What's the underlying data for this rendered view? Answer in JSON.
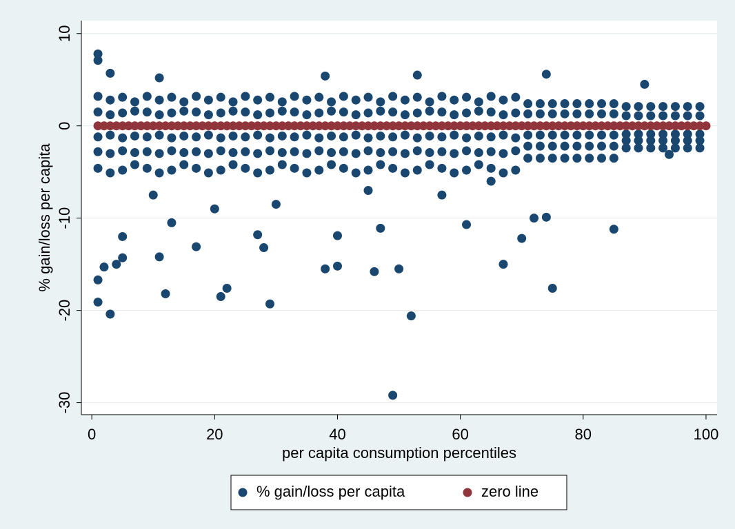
{
  "chart_data": {
    "type": "scatter",
    "x_label": "per capita consumption percentiles",
    "y_label": "% gain/loss per capita",
    "xlim": [
      -1.7,
      101.8
    ],
    "ylim": [
      -31.3,
      11.4
    ],
    "xticks": [
      0,
      20,
      40,
      60,
      80,
      100
    ],
    "yticks": [
      -30,
      -20,
      -10,
      0,
      10
    ],
    "grid": true,
    "legend_position": "bottom",
    "series": [
      {
        "name": "% gain/loss per capita",
        "color": "#1a476f",
        "x": [
          1,
          1,
          1,
          1,
          1,
          3,
          3,
          3,
          3,
          3,
          5,
          5,
          5,
          5,
          5,
          7,
          7,
          7,
          7,
          7,
          9,
          9,
          9,
          9,
          9,
          11,
          11,
          11,
          11,
          11,
          13,
          13,
          13,
          13,
          13,
          15,
          15,
          15,
          15,
          15,
          17,
          17,
          17,
          17,
          17,
          19,
          19,
          19,
          19,
          19,
          21,
          21,
          21,
          21,
          21,
          23,
          23,
          23,
          23,
          23,
          25,
          25,
          25,
          25,
          25,
          27,
          27,
          27,
          27,
          27,
          29,
          29,
          29,
          29,
          29,
          31,
          31,
          31,
          31,
          31,
          33,
          33,
          33,
          33,
          33,
          35,
          35,
          35,
          35,
          35,
          37,
          37,
          37,
          37,
          37,
          39,
          39,
          39,
          39,
          39,
          41,
          41,
          41,
          41,
          41,
          43,
          43,
          43,
          43,
          43,
          45,
          45,
          45,
          45,
          45,
          47,
          47,
          47,
          47,
          47,
          49,
          49,
          49,
          49,
          49,
          51,
          51,
          51,
          51,
          51,
          53,
          53,
          53,
          53,
          53,
          55,
          55,
          55,
          55,
          55,
          57,
          57,
          57,
          57,
          57,
          59,
          59,
          59,
          59,
          59,
          61,
          61,
          61,
          61,
          61,
          63,
          63,
          63,
          63,
          63,
          65,
          65,
          65,
          65,
          65,
          67,
          67,
          67,
          67,
          67,
          69,
          69,
          69,
          69,
          69,
          71,
          71,
          71,
          71,
          71,
          73,
          73,
          73,
          73,
          73,
          75,
          75,
          75,
          75,
          75,
          77,
          77,
          77,
          77,
          77,
          79,
          79,
          79,
          79,
          79,
          81,
          81,
          81,
          81,
          81,
          83,
          83,
          83,
          83,
          83,
          85,
          85,
          85,
          85,
          85,
          87,
          87,
          87,
          87,
          87,
          89,
          89,
          89,
          89,
          89,
          91,
          91,
          91,
          91,
          91,
          93,
          93,
          93,
          93,
          93,
          95,
          95,
          95,
          95,
          95,
          97,
          97,
          97,
          97,
          97,
          99,
          99,
          99,
          99,
          99,
          1,
          1,
          1,
          1,
          3,
          2,
          3,
          4,
          5,
          5,
          11,
          11,
          12,
          13,
          17,
          21,
          22,
          27,
          28,
          29,
          38,
          38,
          40,
          40,
          46,
          47,
          49,
          50,
          52,
          53,
          61,
          67,
          70,
          72,
          74,
          74,
          75,
          85,
          90,
          94,
          10,
          20,
          30,
          45,
          57,
          65
        ],
        "values": [
          3.2,
          1.5,
          -1.2,
          -2.8,
          -4.6,
          2.8,
          1.2,
          -1.0,
          -3.0,
          -5.1,
          3.1,
          1.4,
          -1.3,
          -2.7,
          -4.8,
          2.6,
          1.6,
          -1.1,
          -2.9,
          -4.2,
          3.2,
          1.5,
          -1.2,
          -2.8,
          -4.6,
          2.8,
          1.2,
          -1.0,
          -3.0,
          -5.1,
          3.1,
          1.4,
          -1.3,
          -2.7,
          -4.8,
          2.6,
          1.6,
          -1.1,
          -2.9,
          -4.2,
          3.2,
          1.5,
          -1.2,
          -2.8,
          -4.6,
          2.8,
          1.2,
          -1.0,
          -3.0,
          -5.1,
          3.1,
          1.4,
          -1.3,
          -2.7,
          -4.8,
          2.6,
          1.6,
          -1.1,
          -2.9,
          -4.2,
          3.2,
          1.5,
          -1.2,
          -2.8,
          -4.6,
          2.8,
          1.2,
          -1.0,
          -3.0,
          -5.1,
          3.1,
          1.4,
          -1.3,
          -2.7,
          -4.8,
          2.6,
          1.6,
          -1.1,
          -2.9,
          -4.2,
          3.2,
          1.5,
          -1.2,
          -2.8,
          -4.6,
          2.8,
          1.2,
          -1.0,
          -3.0,
          -5.1,
          3.1,
          1.4,
          -1.3,
          -2.7,
          -4.8,
          2.6,
          1.6,
          -1.1,
          -2.9,
          -4.2,
          3.2,
          1.5,
          -1.2,
          -2.8,
          -4.6,
          2.8,
          1.2,
          -1.0,
          -3.0,
          -5.1,
          3.1,
          1.4,
          -1.3,
          -2.7,
          -4.8,
          2.6,
          1.6,
          -1.1,
          -2.9,
          -4.2,
          3.2,
          1.5,
          -1.2,
          -2.8,
          -4.6,
          2.8,
          1.2,
          -1.0,
          -3.0,
          -5.1,
          3.1,
          1.4,
          -1.3,
          -2.7,
          -4.8,
          2.6,
          1.6,
          -1.1,
          -2.9,
          -4.2,
          3.2,
          1.5,
          -1.2,
          -2.8,
          -4.6,
          2.8,
          1.2,
          -1.0,
          -3.0,
          -5.1,
          3.1,
          1.4,
          -1.3,
          -2.7,
          -4.8,
          2.6,
          1.6,
          -1.1,
          -2.9,
          -4.2,
          3.2,
          1.5,
          -1.2,
          -2.8,
          -4.6,
          2.8,
          1.2,
          -1.0,
          -3.0,
          -5.1,
          3.1,
          1.4,
          -1.3,
          -2.7,
          -4.8,
          2.4,
          1.3,
          -1.0,
          -2.2,
          -3.5,
          2.4,
          1.3,
          -1.0,
          -2.2,
          -3.5,
          2.4,
          1.3,
          -1.0,
          -2.2,
          -3.5,
          2.4,
          1.3,
          -1.0,
          -2.2,
          -3.5,
          2.4,
          1.3,
          -1.0,
          -2.2,
          -3.5,
          2.4,
          1.3,
          -1.0,
          -2.2,
          -3.5,
          2.4,
          1.3,
          -1.0,
          -2.2,
          -3.5,
          2.4,
          1.3,
          -1.0,
          -2.2,
          -3.5,
          2.1,
          1.1,
          -0.9,
          -1.6,
          -2.4,
          2.1,
          1.1,
          -0.9,
          -1.6,
          -2.4,
          2.1,
          1.1,
          -0.9,
          -1.6,
          -2.4,
          2.1,
          1.1,
          -0.9,
          -1.6,
          -2.4,
          2.1,
          1.1,
          -0.9,
          -1.6,
          -2.4,
          2.1,
          1.1,
          -0.9,
          -1.6,
          -2.4,
          2.1,
          1.1,
          -0.9,
          -1.6,
          -2.4,
          7.8,
          7.1,
          -16.7,
          -19.1,
          -20.4,
          -15.3,
          5.7,
          -15.0,
          -14.3,
          -12.0,
          5.2,
          -14.2,
          -18.2,
          -10.5,
          -13.1,
          -18.5,
          -17.6,
          -11.8,
          -13.2,
          -19.3,
          5.4,
          -15.5,
          -15.2,
          -11.9,
          -15.8,
          -11.1,
          -29.2,
          -15.5,
          -20.6,
          5.5,
          -10.7,
          -15.0,
          -12.2,
          -10.0,
          5.6,
          -9.9,
          -17.6,
          -11.2,
          4.5,
          -3.1,
          -7.5,
          -9,
          -8.5,
          -7,
          -7.5,
          -6
        ]
      },
      {
        "name": "zero line",
        "color": "#90353b",
        "x": [
          1,
          2,
          3,
          4,
          5,
          6,
          7,
          8,
          9,
          10,
          11,
          12,
          13,
          14,
          15,
          16,
          17,
          18,
          19,
          20,
          21,
          22,
          23,
          24,
          25,
          26,
          27,
          28,
          29,
          30,
          31,
          32,
          33,
          34,
          35,
          36,
          37,
          38,
          39,
          40,
          41,
          42,
          43,
          44,
          45,
          46,
          47,
          48,
          49,
          50,
          51,
          52,
          53,
          54,
          55,
          56,
          57,
          58,
          59,
          60,
          61,
          62,
          63,
          64,
          65,
          66,
          67,
          68,
          69,
          70,
          71,
          72,
          73,
          74,
          75,
          76,
          77,
          78,
          79,
          80,
          81,
          82,
          83,
          84,
          85,
          86,
          87,
          88,
          89,
          90,
          91,
          92,
          93,
          94,
          95,
          96,
          97,
          98,
          99,
          100
        ],
        "values": [
          0,
          0,
          0,
          0,
          0,
          0,
          0,
          0,
          0,
          0,
          0,
          0,
          0,
          0,
          0,
          0,
          0,
          0,
          0,
          0,
          0,
          0,
          0,
          0,
          0,
          0,
          0,
          0,
          0,
          0,
          0,
          0,
          0,
          0,
          0,
          0,
          0,
          0,
          0,
          0,
          0,
          0,
          0,
          0,
          0,
          0,
          0,
          0,
          0,
          0,
          0,
          0,
          0,
          0,
          0,
          0,
          0,
          0,
          0,
          0,
          0,
          0,
          0,
          0,
          0,
          0,
          0,
          0,
          0,
          0,
          0,
          0,
          0,
          0,
          0,
          0,
          0,
          0,
          0,
          0,
          0,
          0,
          0,
          0,
          0,
          0,
          0,
          0,
          0,
          0,
          0,
          0,
          0,
          0,
          0,
          0,
          0,
          0,
          0,
          0
        ]
      }
    ]
  }
}
